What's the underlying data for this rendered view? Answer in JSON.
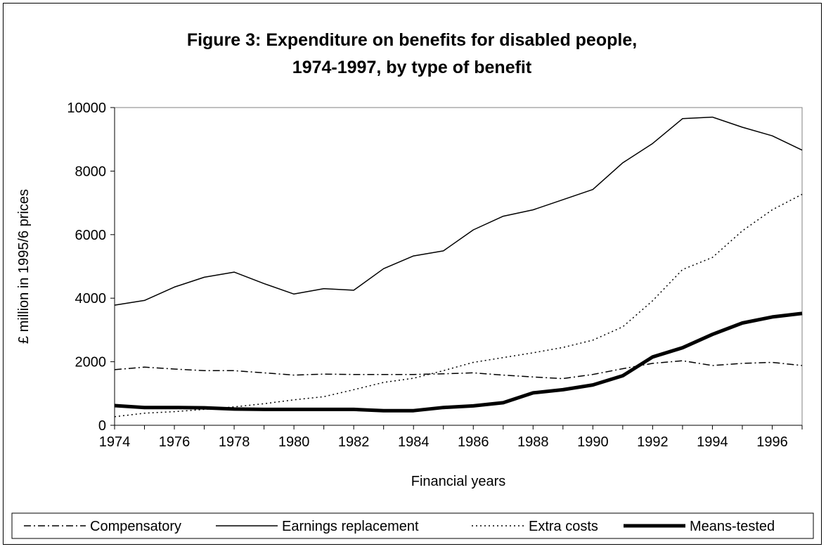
{
  "chart_data": {
    "type": "line",
    "title": "Figure 3: Expenditure on benefits for disabled people,",
    "subtitle": "1974-1997, by type of benefit",
    "xlabel": "Financial years",
    "ylabel": "£ million in 1995/6 prices",
    "xlim": [
      1974,
      1997
    ],
    "ylim": [
      0,
      10000
    ],
    "x_ticks": [
      "1974",
      "1976",
      "1978",
      "1980",
      "1982",
      "1984",
      "1986",
      "1988",
      "1990",
      "1992",
      "1994",
      "1996"
    ],
    "y_ticks": [
      "0",
      "2000",
      "4000",
      "6000",
      "8000",
      "10000"
    ],
    "grid": false,
    "legend_position": "bottom",
    "x": [
      1974,
      1975,
      1976,
      1977,
      1978,
      1979,
      1980,
      1981,
      1982,
      1983,
      1984,
      1985,
      1986,
      1987,
      1988,
      1989,
      1990,
      1991,
      1992,
      1993,
      1994,
      1995,
      1996,
      1997
    ],
    "series": [
      {
        "name": "Compensatory",
        "style": "dashdot",
        "color": "#000000",
        "values": [
          1750,
          1830,
          1770,
          1720,
          1720,
          1650,
          1580,
          1610,
          1600,
          1600,
          1600,
          1620,
          1650,
          1580,
          1520,
          1470,
          1600,
          1780,
          1950,
          2030,
          1880,
          1950,
          1980,
          1880
        ]
      },
      {
        "name": "Earnings replacement",
        "style": "solid",
        "color": "#000000",
        "values": [
          3780,
          3930,
          4350,
          4660,
          4820,
          4460,
          4130,
          4300,
          4250,
          4930,
          5330,
          5490,
          6150,
          6580,
          6780,
          7100,
          7420,
          8260,
          8870,
          9650,
          9700,
          9380,
          9110,
          8660
        ]
      },
      {
        "name": "Extra costs",
        "style": "dotted",
        "color": "#000000",
        "values": [
          270,
          380,
          430,
          500,
          580,
          680,
          800,
          900,
          1120,
          1350,
          1480,
          1720,
          1980,
          2130,
          2280,
          2450,
          2680,
          3100,
          3920,
          4900,
          5280,
          6120,
          6780,
          7270
        ]
      },
      {
        "name": "Means-tested",
        "style": "thick",
        "color": "#000000",
        "values": [
          620,
          560,
          560,
          550,
          510,
          500,
          500,
          500,
          500,
          460,
          460,
          560,
          610,
          710,
          1020,
          1120,
          1270,
          1560,
          2150,
          2440,
          2860,
          3220,
          3410,
          3520
        ]
      }
    ]
  }
}
